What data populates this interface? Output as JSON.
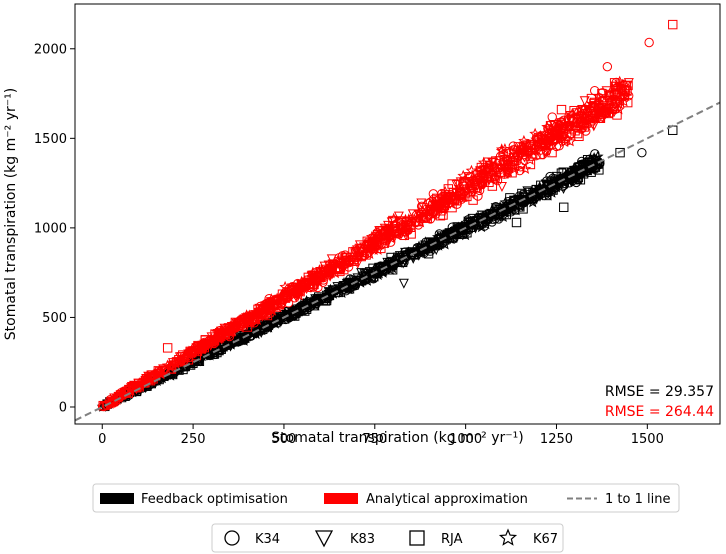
{
  "chart_data": {
    "type": "scatter",
    "xlabel": "Stomatal transpiration (kg m⁻² yr⁻¹)",
    "ylabel": "Stomatal transpiration (kg m⁻² yr⁻¹)",
    "xlim": [
      -75,
      1700
    ],
    "ylim": [
      -95,
      2250
    ],
    "xticks": [
      "0",
      "250",
      "500",
      "750",
      "1000",
      "1250",
      "1500"
    ],
    "yticks": [
      "0",
      "500",
      "1000",
      "1500",
      "2000"
    ],
    "grid": false,
    "series": [
      {
        "name": "Feedback optimisation",
        "color": "#000000",
        "fit_slope": 1.0,
        "range": [
          0,
          1490
        ]
      },
      {
        "name": "Analytical approximation",
        "color": "#ff0000",
        "fit_slope": 1.25,
        "range": [
          0,
          1570
        ]
      }
    ],
    "reference_line": {
      "name": "1 to 1 line",
      "slope": 1,
      "color": "#808080"
    },
    "sites": [
      "K34",
      "K83",
      "RJA",
      "K67"
    ],
    "site_markers": [
      "circle",
      "triangle-down",
      "square",
      "star"
    ],
    "outliers": [
      {
        "series": "Analytical approximation",
        "x": 1570,
        "y": 2135,
        "marker": "square"
      },
      {
        "series": "Analytical approximation",
        "x": 1505,
        "y": 2035,
        "marker": "circle"
      },
      {
        "series": "Analytical approximation",
        "x": 1390,
        "y": 1900,
        "marker": "circle"
      },
      {
        "series": "Analytical approximation",
        "x": 1410,
        "y": 1810,
        "marker": "square"
      },
      {
        "series": "Analytical approximation",
        "x": 1375,
        "y": 1750,
        "marker": "square"
      },
      {
        "series": "Analytical approximation",
        "x": 1100,
        "y": 1230,
        "marker": "triangle-down"
      },
      {
        "series": "Analytical approximation",
        "x": 180,
        "y": 330,
        "marker": "square"
      },
      {
        "series": "Feedback optimisation",
        "x": 1570,
        "y": 1545,
        "marker": "square"
      },
      {
        "series": "Feedback optimisation",
        "x": 1485,
        "y": 1420,
        "marker": "circle"
      },
      {
        "series": "Feedback optimisation",
        "x": 1425,
        "y": 1420,
        "marker": "square"
      },
      {
        "series": "Feedback optimisation",
        "x": 1270,
        "y": 1115,
        "marker": "square"
      },
      {
        "series": "Feedback optimisation",
        "x": 1140,
        "y": 1030,
        "marker": "square"
      },
      {
        "series": "Feedback optimisation",
        "x": 830,
        "y": 690,
        "marker": "triangle-down"
      }
    ],
    "annotations": [
      {
        "text": "RMSE = 29.357",
        "color": "#000000"
      },
      {
        "text": "RMSE = 264.44",
        "color": "#ff0000"
      }
    ]
  }
}
